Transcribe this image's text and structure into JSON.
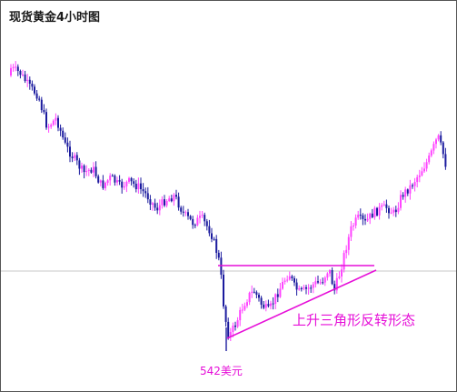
{
  "title": "现货黄金4小时图",
  "pattern_label": "上升三角形反转形态",
  "low_label": "542美元",
  "colors": {
    "background": "#ffffff",
    "border": "#555555",
    "up_candle": "#ff44ff",
    "down_candle": "#1b1b9e",
    "annotation": "#e60fd8",
    "reference_line": "#c8c8c8"
  },
  "chart_data": {
    "type": "candlestick",
    "title": "现货黄金4小时图",
    "xlabel": "",
    "ylabel": "",
    "grid": false,
    "low_price": 542,
    "low_price_label": "542美元",
    "annotation": "上升三角形反转形态",
    "y_scale": "unlabeled",
    "close_path": [
      [
        0,
        75
      ],
      [
        10,
        80
      ],
      [
        20,
        95
      ],
      [
        30,
        105
      ],
      [
        40,
        140
      ],
      [
        50,
        130
      ],
      [
        60,
        160
      ],
      [
        70,
        175
      ],
      [
        80,
        190
      ],
      [
        90,
        185
      ],
      [
        100,
        205
      ],
      [
        110,
        195
      ],
      [
        120,
        205
      ],
      [
        130,
        200
      ],
      [
        140,
        205
      ],
      [
        150,
        215
      ],
      [
        160,
        230
      ],
      [
        170,
        220
      ],
      [
        180,
        215
      ],
      [
        190,
        235
      ],
      [
        200,
        245
      ],
      [
        210,
        240
      ],
      [
        220,
        255
      ],
      [
        226,
        275
      ],
      [
        230,
        290
      ],
      [
        235,
        345
      ],
      [
        240,
        370
      ],
      [
        248,
        355
      ],
      [
        256,
        335
      ],
      [
        262,
        325
      ],
      [
        268,
        320
      ],
      [
        276,
        335
      ],
      [
        284,
        342
      ],
      [
        292,
        325
      ],
      [
        300,
        310
      ],
      [
        306,
        300
      ],
      [
        312,
        315
      ],
      [
        318,
        322
      ],
      [
        326,
        318
      ],
      [
        334,
        312
      ],
      [
        342,
        310
      ],
      [
        350,
        295
      ],
      [
        356,
        320
      ],
      [
        362,
        300
      ],
      [
        368,
        275
      ],
      [
        375,
        250
      ],
      [
        382,
        240
      ],
      [
        390,
        245
      ],
      [
        398,
        235
      ],
      [
        406,
        230
      ],
      [
        414,
        228
      ],
      [
        422,
        235
      ],
      [
        430,
        215
      ],
      [
        440,
        205
      ],
      [
        450,
        190
      ],
      [
        460,
        175
      ],
      [
        466,
        160
      ],
      [
        470,
        150
      ],
      [
        476,
        170
      ],
      [
        482,
        195
      ],
      [
        488,
        215
      ],
      [
        493,
        235
      ]
    ],
    "resistance_line": {
      "x1": 240,
      "y1": 292,
      "x2": 412,
      "y2": 292
    },
    "support_line": {
      "x1": 250,
      "y1": 372,
      "x2": 414,
      "y2": 297
    },
    "reference_level_y": 298
  }
}
